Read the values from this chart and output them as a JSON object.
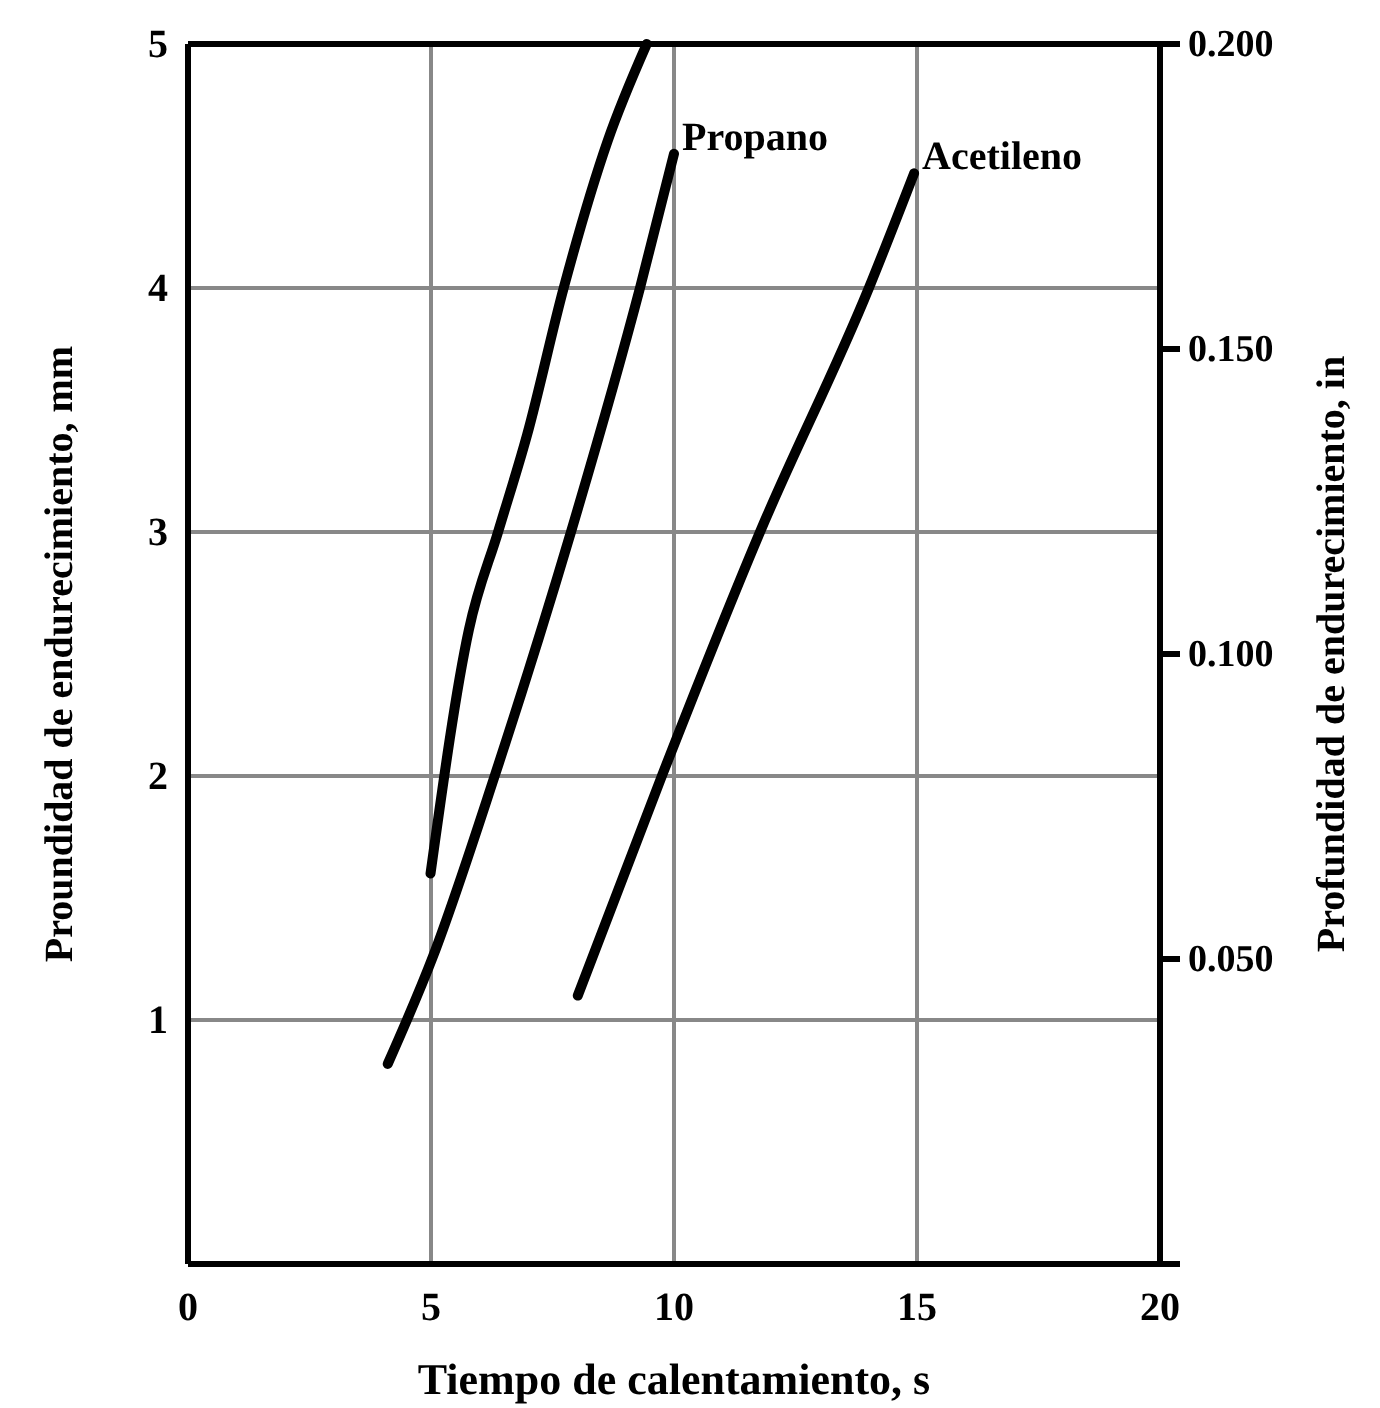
{
  "chart_data": {
    "type": "line",
    "xlabel": "Tiempo de calentamiento, s",
    "ylabel": "Proundidad de endurecimiento, mm",
    "y2label": "Profundidad de endurecimiento, in",
    "xlim": [
      0,
      20
    ],
    "xticks": [
      0,
      5,
      10,
      15,
      20
    ],
    "ylim": [
      0,
      5
    ],
    "yticks": [
      1,
      2,
      3,
      4,
      5
    ],
    "y2lim": [
      0,
      0.2
    ],
    "y2ticks": [
      {
        "value": 0.05,
        "label": "0.050"
      },
      {
        "value": 0.1,
        "label": "0.100"
      },
      {
        "value": 0.15,
        "label": "0.150"
      },
      {
        "value": 0.2,
        "label": "0.200"
      }
    ],
    "grid": true,
    "legend": false,
    "marker": "none",
    "line_style": "solid",
    "series": [
      {
        "color": "#000000",
        "x": [
          4.99,
          5.78,
          6.38,
          6.98,
          7.73,
          8.63,
          9.44
        ],
        "values": [
          1.6,
          2.6,
          3.0,
          3.4,
          4.0,
          4.6,
          5.0
        ]
      },
      {
        "name": "Propano",
        "color": "#000000",
        "x": [
          4.11,
          5.04,
          6.31,
          7.88,
          9.3,
          10.0
        ],
        "values": [
          0.82,
          1.26,
          2.0,
          3.0,
          4.0,
          4.55
        ]
      },
      {
        "name": "Acetileno",
        "color": "#000000",
        "x": [
          8.02,
          9.75,
          11.77,
          14.01,
          14.94
        ],
        "values": [
          1.1,
          2.0,
          3.0,
          4.0,
          4.47
        ]
      }
    ]
  }
}
